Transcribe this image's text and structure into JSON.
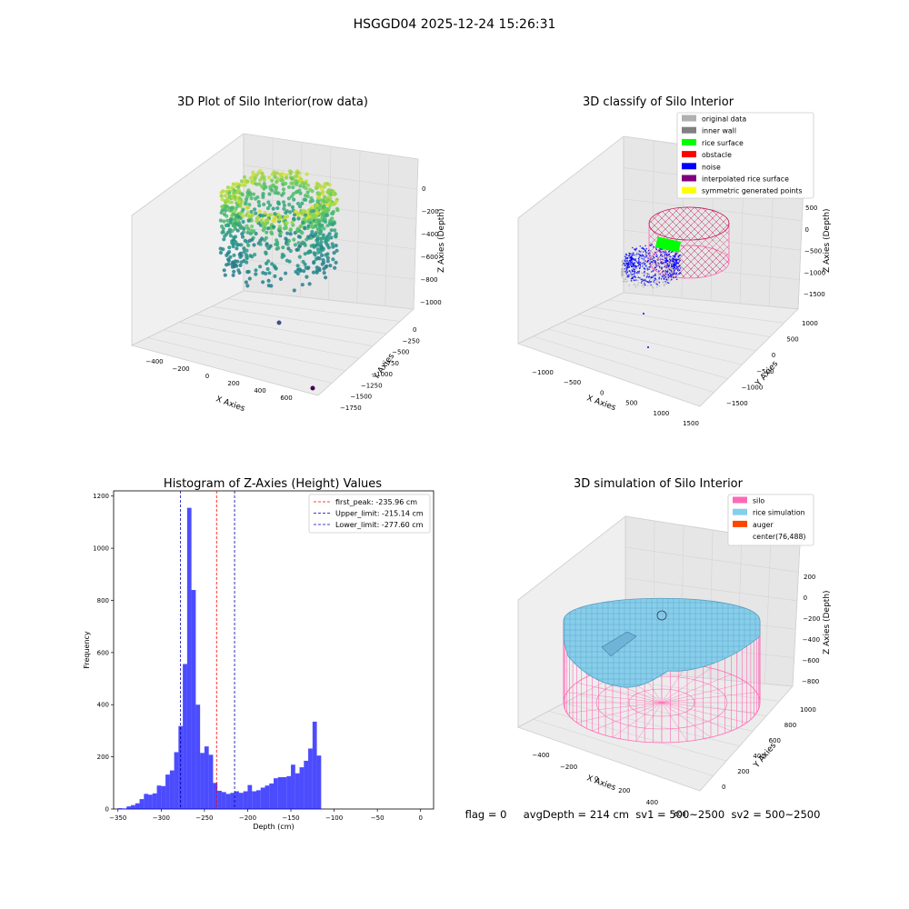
{
  "figure": {
    "suptitle": "HSGGD04 2025-12-24 15:26:31",
    "footer": "flag = 0     avgDepth = 214 cm  sv1 = 500~2500  sv2 = 500~2500"
  },
  "colors": {
    "original_data": "#b0b0b0",
    "inner_wall": "#808080",
    "rice_surface": "#00ff00",
    "obstacle": "#ff0000",
    "noise": "#0000ff",
    "interpolated": "#800080",
    "symmetric": "#ffff00",
    "silo": "#ff69b4",
    "rice_sim": "#87ceeb",
    "auger": "#ff4500",
    "hist_bar": "#0000ff"
  },
  "chart_data": [
    {
      "type": "scatter",
      "title": "3D Plot of Silo Interior(row data)",
      "xlabel": "X Axies",
      "ylabel": "Y Axies",
      "zlabel": "Z Axies (Depth)",
      "xticks": [
        "−400",
        "−200",
        "0",
        "200",
        "400",
        "600"
      ],
      "yticks": [
        "0",
        "−250",
        "−500",
        "−750",
        "−1000",
        "−1250",
        "−1500",
        "−1750"
      ],
      "zticks": [
        "0",
        "−200",
        "−400",
        "−600",
        "−800",
        "−1000"
      ],
      "colormap": "viridis"
    },
    {
      "type": "scatter",
      "title": "3D classify of Silo Interior",
      "xlabel": "X Axies",
      "ylabel": "Y Axies",
      "zlabel": "Z Axies (Depth)",
      "xticks": [
        "−1000",
        "−500",
        "0",
        "500",
        "1000",
        "1500"
      ],
      "yticks": [
        "1000",
        "500",
        "0",
        "−500",
        "−1000",
        "−1500"
      ],
      "zticks": [
        "500",
        "0",
        "−500",
        "−1000",
        "−1500"
      ],
      "legend": [
        "original data",
        "inner wall",
        "rice surface",
        "obstacle",
        "noise",
        "interpolated rice surface",
        "symmetric generated points"
      ],
      "legend_position": "top-right"
    },
    {
      "type": "bar",
      "title": "Histogram of Z-Axies (Height) Values",
      "xlabel": "Depth (cm)",
      "ylabel": "Frequency",
      "xlim": [
        -355,
        15
      ],
      "ylim": [
        0,
        1220
      ],
      "xticks": [
        -350,
        -300,
        -250,
        -200,
        -150,
        -100,
        -50,
        0
      ],
      "yticks": [
        0,
        200,
        400,
        600,
        800,
        1000,
        1200
      ],
      "bin_width": 5,
      "bin_start": -350,
      "values": [
        3,
        2,
        10,
        15,
        22,
        38,
        58,
        55,
        60,
        90,
        88,
        132,
        148,
        218,
        318,
        556,
        1155,
        840,
        400,
        215,
        240,
        208,
        100,
        70,
        65,
        58,
        62,
        68,
        62,
        68,
        92,
        68,
        72,
        82,
        90,
        98,
        118,
        122,
        122,
        126,
        170,
        137,
        160,
        185,
        232,
        335,
        205
      ],
      "lines": [
        {
          "label": "first_peak: -235.96 cm",
          "x": -235.96,
          "color": "#ff0000"
        },
        {
          "label": "Upper_limit: -215.14 cm",
          "x": -215.14,
          "color": "#0000aa"
        },
        {
          "label": "Lower_limit: -277.60 cm",
          "x": -277.6,
          "color": "#0000aa"
        }
      ],
      "legend_position": "top-right"
    },
    {
      "type": "surface",
      "title": "3D simulation of Silo Interior",
      "xlabel": "X Axies",
      "ylabel": "Y Axies",
      "zlabel": "Z Axies (Depth)",
      "xticks": [
        "−400",
        "−200",
        "0",
        "200",
        "400",
        "600"
      ],
      "yticks": [
        "0",
        "200",
        "400",
        "600",
        "800",
        "1000"
      ],
      "zticks": [
        "200",
        "0",
        "−200",
        "−400",
        "−600",
        "−800"
      ],
      "legend": [
        "silo",
        "rice simulation",
        "auger",
        "center(76,488)"
      ],
      "legend_position": "top-right"
    }
  ]
}
